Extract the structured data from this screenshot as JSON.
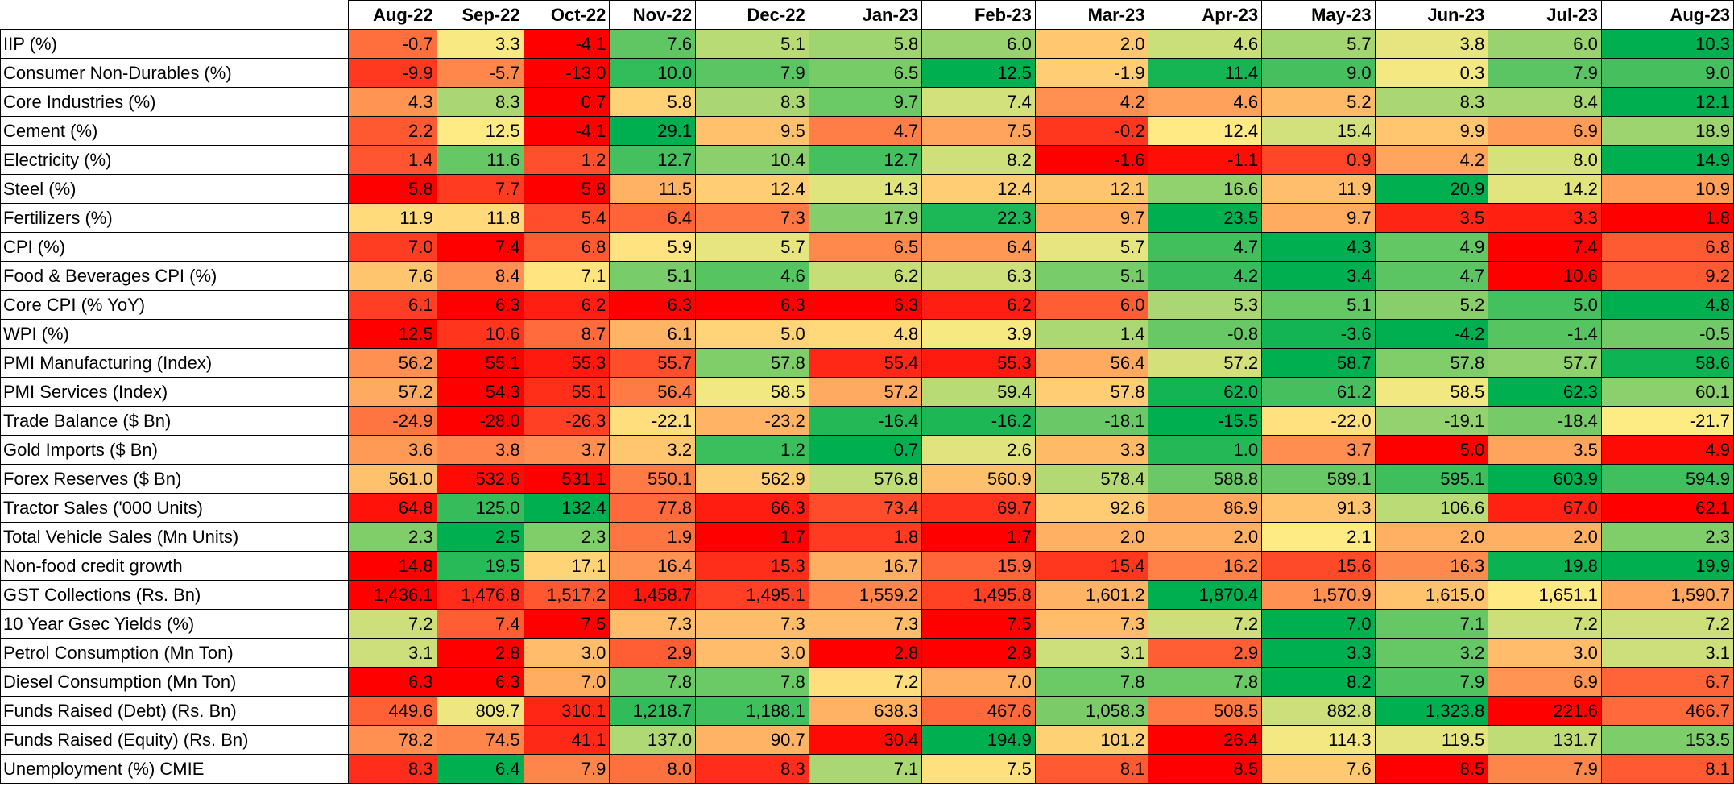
{
  "chart_data": {
    "type": "heatmap",
    "title": "",
    "columns": [
      "Aug-22",
      "Sep-22",
      "Oct-22",
      "Nov-22",
      "Dec-22",
      "Jan-23",
      "Feb-23",
      "Mar-23",
      "Apr-23",
      "May-23",
      "Jun-23",
      "Jul-23",
      "Aug-23"
    ],
    "color_scale": {
      "low": "#ff0000",
      "mid": "#ffeb84",
      "high": "#00b050",
      "scope": "row"
    },
    "rows": [
      {
        "label": "IIP (%)",
        "values": [
          "-0.7",
          "3.3",
          "-4.1",
          "7.6",
          "5.1",
          "5.8",
          "6.0",
          "2.0",
          "4.6",
          "5.7",
          "3.8",
          "6.0",
          "10.3"
        ]
      },
      {
        "label": "Consumer Non-Durables (%)",
        "values": [
          "-9.9",
          "-5.7",
          "-13.0",
          "10.0",
          "7.9",
          "6.5",
          "12.5",
          "-1.9",
          "11.4",
          "9.0",
          "0.3",
          "7.9",
          "9.0"
        ]
      },
      {
        "label": "Core Industries (%)",
        "values": [
          "4.3",
          "8.3",
          "0.7",
          "5.8",
          "8.3",
          "9.7",
          "7.4",
          "4.2",
          "4.6",
          "5.2",
          "8.3",
          "8.4",
          "12.1"
        ]
      },
      {
        "label": "Cement (%)",
        "values": [
          "2.2",
          "12.5",
          "-4.1",
          "29.1",
          "9.5",
          "4.7",
          "7.5",
          "-0.2",
          "12.4",
          "15.4",
          "9.9",
          "6.9",
          "18.9"
        ]
      },
      {
        "label": "Electricity (%)",
        "values": [
          "1.4",
          "11.6",
          "1.2",
          "12.7",
          "10.4",
          "12.7",
          "8.2",
          "-1.6",
          "-1.1",
          "0.9",
          "4.2",
          "8.0",
          "14.9"
        ]
      },
      {
        "label": "Steel (%)",
        "values": [
          "5.8",
          "7.7",
          "5.8",
          "11.5",
          "12.4",
          "14.3",
          "12.4",
          "12.1",
          "16.6",
          "11.9",
          "20.9",
          "14.2",
          "10.9"
        ]
      },
      {
        "label": "Fertilizers (%)",
        "values": [
          "11.9",
          "11.8",
          "5.4",
          "6.4",
          "7.3",
          "17.9",
          "22.3",
          "9.7",
          "23.5",
          "9.7",
          "3.5",
          "3.3",
          "1.8"
        ]
      },
      {
        "label": "CPI (%)",
        "values": [
          "7.0",
          "7.4",
          "6.8",
          "5.9",
          "5.7",
          "6.5",
          "6.4",
          "5.7",
          "4.7",
          "4.3",
          "4.9",
          "7.4",
          "6.8"
        ],
        "invert": true
      },
      {
        "label": "Food & Beverages CPI (%)",
        "values": [
          "7.6",
          "8.4",
          "7.1",
          "5.1",
          "4.6",
          "6.2",
          "6.3",
          "5.1",
          "4.2",
          "3.4",
          "4.7",
          "10.6",
          "9.2"
        ],
        "invert": true
      },
      {
        "label": "Core CPI (% YoY)",
        "values": [
          "6.1",
          "6.3",
          "6.2",
          "6.3",
          "6.3",
          "6.3",
          "6.2",
          "6.0",
          "5.3",
          "5.1",
          "5.2",
          "5.0",
          "4.8"
        ],
        "invert": true
      },
      {
        "label": "WPI (%)",
        "values": [
          "12.5",
          "10.6",
          "8.7",
          "6.1",
          "5.0",
          "4.8",
          "3.9",
          "1.4",
          "-0.8",
          "-3.6",
          "-4.2",
          "-1.4",
          "-0.5"
        ],
        "invert": true
      },
      {
        "label": "PMI Manufacturing (Index)",
        "values": [
          "56.2",
          "55.1",
          "55.3",
          "55.7",
          "57.8",
          "55.4",
          "55.3",
          "56.4",
          "57.2",
          "58.7",
          "57.8",
          "57.7",
          "58.6"
        ]
      },
      {
        "label": "PMI Services (Index)",
        "values": [
          "57.2",
          "54.3",
          "55.1",
          "56.4",
          "58.5",
          "57.2",
          "59.4",
          "57.8",
          "62.0",
          "61.2",
          "58.5",
          "62.3",
          "60.1"
        ]
      },
      {
        "label": "Trade Balance ($ Bn)",
        "values": [
          "-24.9",
          "-28.0",
          "-26.3",
          "-22.1",
          "-23.2",
          "-16.4",
          "-16.2",
          "-18.1",
          "-15.5",
          "-22.0",
          "-19.1",
          "-18.4",
          "-21.7"
        ]
      },
      {
        "label": "Gold Imports ($ Bn)",
        "values": [
          "3.6",
          "3.8",
          "3.7",
          "3.2",
          "1.2",
          "0.7",
          "2.6",
          "3.3",
          "1.0",
          "3.7",
          "5.0",
          "3.5",
          "4.9"
        ],
        "invert": true
      },
      {
        "label": "Forex Reserves ($ Bn)",
        "values": [
          "561.0",
          "532.6",
          "531.1",
          "550.1",
          "562.9",
          "576.8",
          "560.9",
          "578.4",
          "588.8",
          "589.1",
          "595.1",
          "603.9",
          "594.9"
        ]
      },
      {
        "label": "Tractor Sales ('000 Units)",
        "values": [
          "64.8",
          "125.0",
          "132.4",
          "77.8",
          "66.3",
          "73.4",
          "69.7",
          "92.6",
          "86.9",
          "91.3",
          "106.6",
          "67.0",
          "62.1"
        ]
      },
      {
        "label": "Total Vehicle Sales (Mn Units)",
        "values": [
          "2.3",
          "2.5",
          "2.3",
          "1.9",
          "1.7",
          "1.8",
          "1.7",
          "2.0",
          "2.0",
          "2.1",
          "2.0",
          "2.0",
          "2.3"
        ]
      },
      {
        "label": "Non-food credit growth",
        "values": [
          "14.8",
          "19.5",
          "17.1",
          "16.4",
          "15.3",
          "16.7",
          "15.9",
          "15.4",
          "16.2",
          "15.6",
          "16.3",
          "19.8",
          "19.9"
        ]
      },
      {
        "label": "GST Collections (Rs. Bn)",
        "values": [
          "1,436.1",
          "1,476.8",
          "1,517.2",
          "1,458.7",
          "1,495.1",
          "1,559.2",
          "1,495.8",
          "1,601.2",
          "1,870.4",
          "1,570.9",
          "1,615.0",
          "1,651.1",
          "1,590.7"
        ]
      },
      {
        "label": "10 Year Gsec Yields (%)",
        "values": [
          "7.2",
          "7.4",
          "7.5",
          "7.3",
          "7.3",
          "7.3",
          "7.5",
          "7.3",
          "7.2",
          "7.0",
          "7.1",
          "7.2",
          "7.2"
        ],
        "invert": true
      },
      {
        "label": "Petrol Consumption (Mn Ton)",
        "values": [
          "3.1",
          "2.8",
          "3.0",
          "2.9",
          "3.0",
          "2.8",
          "2.8",
          "3.1",
          "2.9",
          "3.3",
          "3.2",
          "3.0",
          "3.1"
        ]
      },
      {
        "label": "Diesel Consumption (Mn Ton)",
        "values": [
          "6.3",
          "6.3",
          "7.0",
          "7.8",
          "7.8",
          "7.2",
          "7.0",
          "7.8",
          "7.8",
          "8.2",
          "7.9",
          "6.9",
          "6.7"
        ]
      },
      {
        "label": "Funds Raised (Debt) (Rs. Bn)",
        "values": [
          "449.6",
          "809.7",
          "310.1",
          "1,218.7",
          "1,188.1",
          "638.3",
          "467.6",
          "1,058.3",
          "508.5",
          "882.8",
          "1,323.8",
          "221.6",
          "466.7"
        ]
      },
      {
        "label": "Funds Raised (Equity) (Rs. Bn)",
        "values": [
          "78.2",
          "74.5",
          "41.1",
          "137.0",
          "90.7",
          "30.4",
          "194.9",
          "101.2",
          "26.4",
          "114.3",
          "119.5",
          "131.7",
          "153.5"
        ]
      },
      {
        "label": "Unemployment (%) CMIE",
        "values": [
          "8.3",
          "6.4",
          "7.9",
          "8.0",
          "8.3",
          "7.1",
          "7.5",
          "8.1",
          "8.5",
          "7.6",
          "8.5",
          "7.9",
          "8.1"
        ],
        "invert": true
      }
    ]
  }
}
